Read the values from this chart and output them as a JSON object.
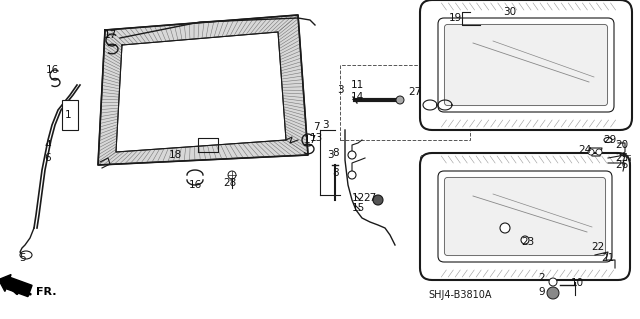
{
  "bg_color": "#ffffff",
  "fig_width": 6.4,
  "fig_height": 3.19,
  "dpi": 100,
  "diagram_code": "SHJ4-B3810A",
  "lc": "#1a1a1a"
}
